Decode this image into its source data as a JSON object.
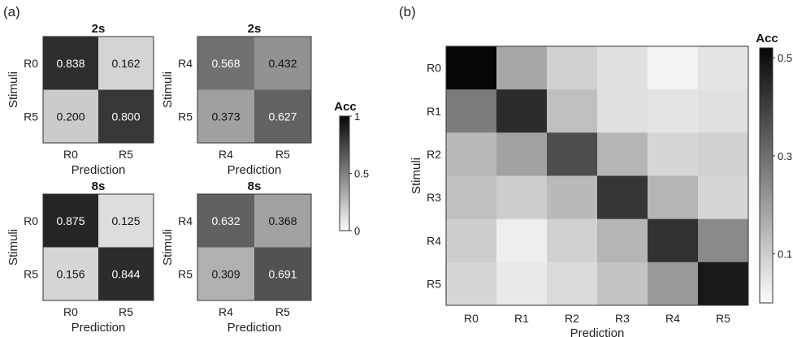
{
  "panel_labels": {
    "a": "(a)",
    "b": "(b)"
  },
  "chart_data": [
    {
      "type": "heatmap",
      "panel": "a",
      "id": "a-top-left",
      "title": "2s",
      "xlabel": "Prediction",
      "ylabel": "Stimuli",
      "x_categories": [
        "R0",
        "R5"
      ],
      "y_categories": [
        "R0",
        "R5"
      ],
      "values": [
        [
          0.838,
          0.162
        ],
        [
          0.2,
          0.8
        ]
      ],
      "labels": [
        [
          "0.838",
          "0.162"
        ],
        [
          "0.200",
          "0.800"
        ]
      ]
    },
    {
      "type": "heatmap",
      "panel": "a",
      "id": "a-top-right",
      "title": "2s",
      "xlabel": "Prediction",
      "ylabel": "Stimuli",
      "x_categories": [
        "R4",
        "R5"
      ],
      "y_categories": [
        "R4",
        "R5"
      ],
      "values": [
        [
          0.568,
          0.432
        ],
        [
          0.373,
          0.627
        ]
      ],
      "labels": [
        [
          "0.568",
          "0.432"
        ],
        [
          "0.373",
          "0.627"
        ]
      ]
    },
    {
      "type": "heatmap",
      "panel": "a",
      "id": "a-bottom-left",
      "title": "8s",
      "xlabel": "Prediction",
      "ylabel": "Stimuli",
      "x_categories": [
        "R0",
        "R5"
      ],
      "y_categories": [
        "R0",
        "R5"
      ],
      "values": [
        [
          0.875,
          0.125
        ],
        [
          0.156,
          0.844
        ]
      ],
      "labels": [
        [
          "0.875",
          "0.125"
        ],
        [
          "0.156",
          "0.844"
        ]
      ]
    },
    {
      "type": "heatmap",
      "panel": "a",
      "id": "a-bottom-right",
      "title": "8s",
      "xlabel": "Prediction",
      "ylabel": "Stimuli",
      "x_categories": [
        "R4",
        "R5"
      ],
      "y_categories": [
        "R4",
        "R5"
      ],
      "values": [
        [
          0.632,
          0.368
        ],
        [
          0.309,
          0.691
        ]
      ],
      "labels": [
        [
          "0.632",
          "0.368"
        ],
        [
          "0.309",
          "0.691"
        ]
      ]
    },
    {
      "type": "heatmap",
      "panel": "b",
      "id": "b-main",
      "title": "",
      "xlabel": "Prediction",
      "ylabel": "Stimuli",
      "x_categories": [
        "R0",
        "R1",
        "R2",
        "R3",
        "R4",
        "R5"
      ],
      "y_categories": [
        "R0",
        "R1",
        "R2",
        "R3",
        "R4",
        "R5"
      ],
      "values": [
        [
          0.52,
          0.18,
          0.09,
          0.06,
          0.02,
          0.05
        ],
        [
          0.27,
          0.44,
          0.13,
          0.06,
          0.05,
          0.06
        ],
        [
          0.14,
          0.19,
          0.37,
          0.15,
          0.08,
          0.09
        ],
        [
          0.13,
          0.1,
          0.14,
          0.42,
          0.15,
          0.08
        ],
        [
          0.1,
          0.03,
          0.09,
          0.15,
          0.43,
          0.24
        ],
        [
          0.08,
          0.04,
          0.07,
          0.12,
          0.21,
          0.48
        ]
      ]
    }
  ],
  "colorbars": [
    {
      "panel": "a",
      "title": "Acc",
      "min": 0,
      "max": 1,
      "ticks": [
        "1",
        "0.5",
        "0"
      ],
      "tick_values": [
        1,
        0.5,
        0
      ]
    },
    {
      "panel": "b",
      "title": "Acc",
      "min": 0,
      "max": 0.52,
      "ticks": [
        "0.5",
        "0.3",
        "0.1"
      ],
      "tick_values": [
        0.5,
        0.3,
        0.1
      ]
    }
  ]
}
